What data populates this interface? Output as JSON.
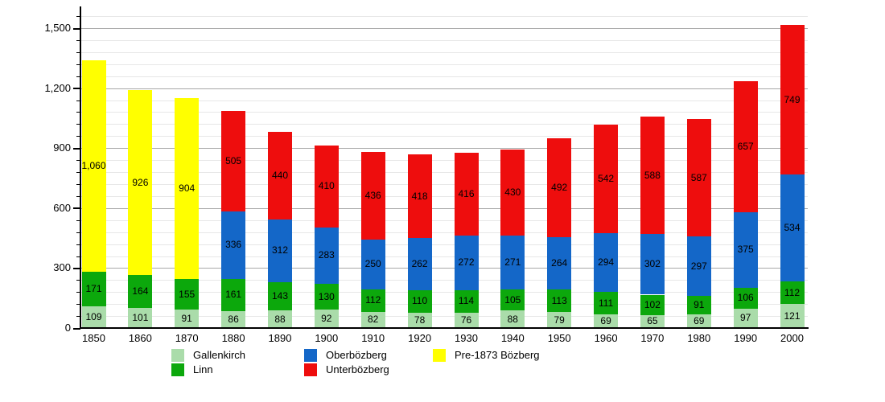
{
  "chart_data": {
    "type": "bar",
    "stacked": true,
    "title": "",
    "categories": [
      "1850",
      "1860",
      "1870",
      "1880",
      "1890",
      "1900",
      "1910",
      "1920",
      "1930",
      "1940",
      "1950",
      "1960",
      "1970",
      "1980",
      "1990",
      "2000"
    ],
    "series": [
      {
        "name": "Gallenkirch",
        "color": "#AADCAA",
        "values": [
          109,
          101,
          91,
          86,
          88,
          92,
          82,
          78,
          76,
          88,
          79,
          69,
          65,
          69,
          97,
          121
        ]
      },
      {
        "name": "Linn",
        "color": "#0CA80C",
        "values": [
          171,
          164,
          155,
          161,
          143,
          130,
          112,
          110,
          114,
          105,
          113,
          111,
          102,
          91,
          106,
          112
        ]
      },
      {
        "name": "Oberbözberg",
        "color": "#1467C8",
        "values": [
          null,
          null,
          null,
          336,
          312,
          283,
          250,
          262,
          272,
          271,
          264,
          294,
          302,
          297,
          375,
          534
        ]
      },
      {
        "name": "Unterbözberg",
        "color": "#EE0D0D",
        "values": [
          null,
          null,
          null,
          505,
          440,
          410,
          436,
          418,
          416,
          430,
          492,
          542,
          588,
          587,
          657,
          749
        ]
      },
      {
        "name": "Pre-1873 Bözberg",
        "color": "#FFFF00",
        "values": [
          1060,
          926,
          904,
          null,
          null,
          null,
          null,
          null,
          null,
          null,
          null,
          null,
          null,
          null,
          null,
          null
        ]
      }
    ],
    "y_ticks": [
      0,
      300,
      600,
      900,
      1200,
      1500
    ],
    "y_minor_step": 60,
    "y_minor_max": 1560,
    "ylim": [
      0,
      1570
    ],
    "grid": true,
    "legend_position": "bottom",
    "value_labels": "inside-center",
    "colors": {
      "axis": "#000000",
      "major_grid": "#a8a8a8",
      "minor_grid": "#e7e7e7",
      "text": "#000000",
      "background": "#ffffff"
    }
  }
}
